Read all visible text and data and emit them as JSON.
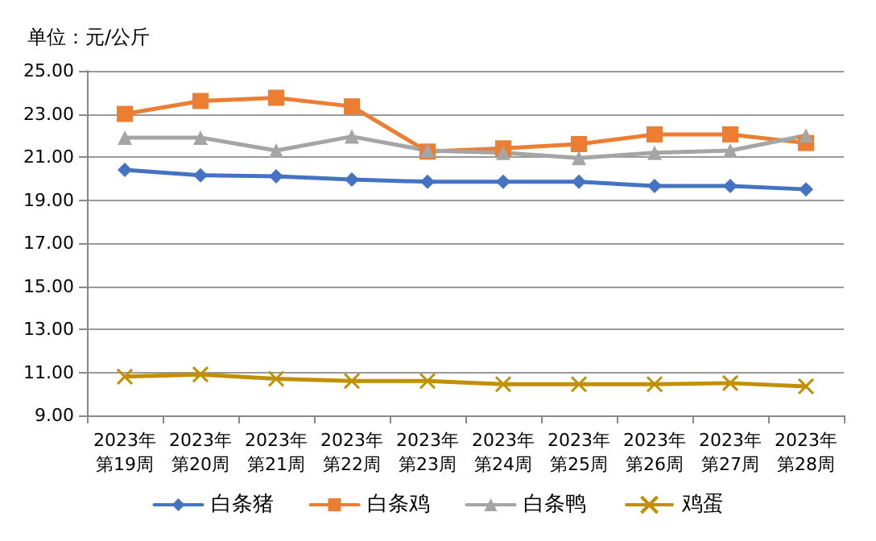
{
  "chart_data": {
    "type": "line",
    "ylabel": "单位：元/公斤",
    "categories": [
      "2023年第19周",
      "2023年第20周",
      "2023年第21周",
      "2023年第22周",
      "2023年第23周",
      "2023年第24周",
      "2023年第25周",
      "2023年第26周",
      "2023年第27周",
      "2023年第28周"
    ],
    "series": [
      {
        "name": "白条猪",
        "color": "#4472c4",
        "marker": "diamond",
        "values": [
          20.4,
          20.15,
          20.1,
          19.95,
          19.85,
          19.85,
          19.85,
          19.65,
          19.65,
          19.5
        ]
      },
      {
        "name": "白条鸡",
        "color": "#ed7d31",
        "marker": "square",
        "values": [
          23.0,
          23.6,
          23.75,
          23.35,
          21.25,
          21.4,
          21.6,
          22.05,
          22.05,
          21.65
        ]
      },
      {
        "name": "白条鸭",
        "color": "#a5a5a5",
        "marker": "triangle",
        "values": [
          21.9,
          21.9,
          21.3,
          21.95,
          21.3,
          21.2,
          20.95,
          21.2,
          21.3,
          22.0
        ]
      },
      {
        "name": "鸡蛋",
        "color": "#c09000",
        "marker": "cross",
        "values": [
          10.8,
          10.9,
          10.7,
          10.6,
          10.6,
          10.45,
          10.45,
          10.45,
          10.5,
          10.35
        ]
      }
    ],
    "ylim": [
      9,
      25
    ],
    "yticks": [
      {
        "value": 9,
        "label": "9.00"
      },
      {
        "value": 11,
        "label": "11.00"
      },
      {
        "value": 13,
        "label": "13.00"
      },
      {
        "value": 15,
        "label": "15.00"
      },
      {
        "value": 17,
        "label": "17.00"
      },
      {
        "value": 19,
        "label": "19.00"
      },
      {
        "value": 21,
        "label": "21.00"
      },
      {
        "value": 23,
        "label": "23.00"
      },
      {
        "value": 25,
        "label": "25.00"
      }
    ],
    "grid": "y",
    "legend": "bottom",
    "line_style": "solid"
  }
}
